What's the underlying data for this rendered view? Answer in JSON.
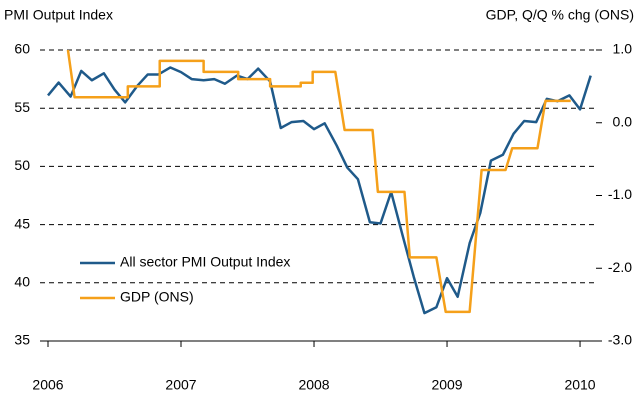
{
  "chart_data": {
    "type": "line",
    "y_label": "PMI Output Index",
    "y2_label": "GDP, Q/Q % chg (ONS)",
    "xlim": [
      2006,
      2010.12
    ],
    "xticks": [
      2006,
      2007,
      2008,
      2009,
      2010
    ],
    "ylim": [
      35,
      60
    ],
    "yticks": [
      35,
      40,
      45,
      50,
      55,
      60
    ],
    "y2lim": [
      -3,
      1
    ],
    "y2ticks": [
      {
        "value": -3,
        "label": "-3.0"
      },
      {
        "value": -2,
        "label": "-2.0"
      },
      {
        "value": -1,
        "label": "-1.0"
      },
      {
        "value": 0,
        "label": "0.0"
      },
      {
        "value": 1,
        "label": "1.0"
      }
    ],
    "grid": true,
    "series": [
      {
        "name": "All sector PMI Output Index",
        "color": "#1f5a8a",
        "x": [
          2006,
          2006.08,
          2006.17,
          2006.25,
          2006.33,
          2006.42,
          2006.5,
          2006.58,
          2006.67,
          2006.75,
          2006.83,
          2006.92,
          2007,
          2007.08,
          2007.17,
          2007.25,
          2007.33,
          2007.42,
          2007.5,
          2007.58,
          2007.67,
          2007.75,
          2007.83,
          2007.92,
          2008,
          2008.08,
          2008.17,
          2008.25,
          2008.33,
          2008.42,
          2008.5,
          2008.58,
          2008.67,
          2008.75,
          2008.83,
          2008.92,
          2009,
          2009.08,
          2009.17,
          2009.25,
          2009.33,
          2009.42,
          2009.5,
          2009.58,
          2009.67,
          2009.75,
          2009.83,
          2009.92,
          2010,
          2010.08
        ],
        "values": [
          56.1,
          57.2,
          56.0,
          58.2,
          57.4,
          58.0,
          56.6,
          55.5,
          56.9,
          57.9,
          57.9,
          58.5,
          58.1,
          57.5,
          57.4,
          57.5,
          57.1,
          57.8,
          57.5,
          58.4,
          57.3,
          53.3,
          53.8,
          53.9,
          53.2,
          53.7,
          51.8,
          49.9,
          48.9,
          45.2,
          45.1,
          47.8,
          43.9,
          40.5,
          37.4,
          37.9,
          40.4,
          38.8,
          43.4,
          46.0,
          50.5,
          51.0,
          52.8,
          53.9,
          53.8,
          55.8,
          55.6,
          56.1,
          54.9,
          57.8
        ]
      },
      {
        "name": "GDP (ONS)",
        "color": "#f5a01a",
        "axis": "y2",
        "x": [
          2006.15,
          2006.2,
          2006.6,
          2006.6,
          2006.84,
          2006.84,
          2007.17,
          2007.17,
          2007.43,
          2007.43,
          2007.67,
          2007.67,
          2007.9,
          2007.9,
          2007.99,
          2007.99,
          2008.16,
          2008.23,
          2008.44,
          2008.48,
          2008.68,
          2008.72,
          2008.92,
          2008.99,
          2009.17,
          2009.26,
          2009.44,
          2009.49,
          2009.68,
          2009.74,
          2009.93
        ],
        "values": [
          1.0,
          0.35,
          0.35,
          0.5,
          0.5,
          0.85,
          0.85,
          0.7,
          0.7,
          0.6,
          0.6,
          0.5,
          0.5,
          0.55,
          0.55,
          0.7,
          0.7,
          -0.1,
          -0.1,
          -0.95,
          -0.95,
          -1.85,
          -1.85,
          -2.6,
          -2.6,
          -0.65,
          -0.65,
          -0.35,
          -0.35,
          0.3,
          0.3
        ]
      }
    ]
  }
}
